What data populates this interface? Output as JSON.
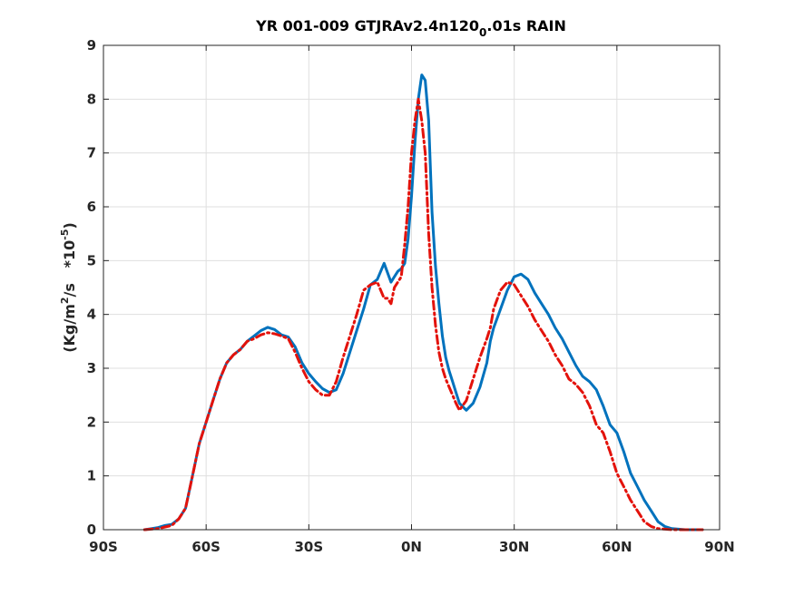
{
  "chart_data": {
    "type": "line",
    "title": {
      "main": "YR 001-009 GTJRAv2.4n120",
      "subscript": "0",
      "rest": ".01s RAIN"
    },
    "ylabel": {
      "part1": "(Kg/m",
      "sup1": "2",
      "part2": "/s   *10",
      "sup2": "-5",
      "part3": ")"
    },
    "xlabel": "",
    "xlim": [
      -90,
      90
    ],
    "ylim": [
      0,
      9
    ],
    "grid": true,
    "x_ticks": [
      {
        "value": -90,
        "label": "90S"
      },
      {
        "value": -60,
        "label": "60S"
      },
      {
        "value": -30,
        "label": "30S"
      },
      {
        "value": 0,
        "label": "0N"
      },
      {
        "value": 30,
        "label": "30N"
      },
      {
        "value": 60,
        "label": "60N"
      },
      {
        "value": 90,
        "label": "90N"
      }
    ],
    "y_ticks": [
      0,
      1,
      2,
      3,
      4,
      5,
      6,
      7,
      8,
      9
    ],
    "series": [
      {
        "color": "#0072bd",
        "style": "solid",
        "x": [
          -78,
          -76,
          -74,
          -72,
          -70,
          -68,
          -66,
          -64,
          -62,
          -60,
          -58,
          -56,
          -54,
          -52,
          -50,
          -48,
          -46,
          -44,
          -42,
          -40,
          -38,
          -36,
          -34,
          -32,
          -30,
          -28,
          -26,
          -24,
          -22,
          -20,
          -18,
          -16,
          -14,
          -12,
          -10,
          -8,
          -6,
          -5,
          -4,
          -3,
          -2,
          -1,
          0,
          1,
          2,
          3,
          4,
          5,
          6,
          7,
          8,
          9,
          10,
          11,
          12,
          13,
          14,
          16,
          18,
          20,
          22,
          23,
          24,
          26,
          28,
          30,
          32,
          34,
          36,
          38,
          40,
          42,
          44,
          46,
          48,
          50,
          52,
          54,
          56,
          58,
          60,
          62,
          64,
          66,
          68,
          70,
          72,
          74,
          76,
          78,
          80,
          82,
          84,
          85
        ],
        "y": [
          0.0,
          0.02,
          0.04,
          0.08,
          0.1,
          0.2,
          0.4,
          1.0,
          1.6,
          2.0,
          2.4,
          2.8,
          3.1,
          3.25,
          3.35,
          3.5,
          3.6,
          3.7,
          3.76,
          3.72,
          3.62,
          3.58,
          3.4,
          3.1,
          2.9,
          2.75,
          2.62,
          2.55,
          2.6,
          2.9,
          3.3,
          3.7,
          4.1,
          4.55,
          4.65,
          4.95,
          4.6,
          4.7,
          4.8,
          4.85,
          4.95,
          5.4,
          6.2,
          7.2,
          8.0,
          8.45,
          8.35,
          7.6,
          5.9,
          4.9,
          4.2,
          3.6,
          3.2,
          2.95,
          2.75,
          2.55,
          2.35,
          2.22,
          2.35,
          2.65,
          3.1,
          3.5,
          3.75,
          4.1,
          4.45,
          4.7,
          4.75,
          4.65,
          4.4,
          4.2,
          4.0,
          3.75,
          3.55,
          3.3,
          3.05,
          2.85,
          2.75,
          2.6,
          2.3,
          1.95,
          1.8,
          1.45,
          1.05,
          0.8,
          0.55,
          0.35,
          0.15,
          0.06,
          0.02,
          0.01,
          0.0,
          0.0,
          0.0,
          0.0
        ]
      },
      {
        "color": "#e3120b",
        "style": "dashed",
        "x": [
          -78,
          -76,
          -74,
          -72,
          -70,
          -68,
          -66,
          -64,
          -62,
          -60,
          -58,
          -56,
          -54,
          -52,
          -50,
          -48,
          -46,
          -44,
          -42,
          -40,
          -38,
          -36,
          -34,
          -32,
          -30,
          -28,
          -26,
          -24,
          -22,
          -20,
          -18,
          -16,
          -14,
          -12,
          -10,
          -8,
          -7,
          -6,
          -5,
          -4,
          -3,
          -2,
          -1,
          0,
          1,
          2,
          3,
          4,
          5,
          6,
          7,
          8,
          9,
          10,
          11,
          12,
          13,
          14,
          16,
          18,
          20,
          22,
          23,
          24,
          26,
          28,
          30,
          32,
          34,
          36,
          38,
          40,
          42,
          44,
          46,
          48,
          50,
          52,
          54,
          56,
          58,
          60,
          62,
          64,
          66,
          68,
          70,
          72,
          74,
          76,
          78,
          80,
          82,
          84,
          85
        ],
        "y": [
          0.0,
          0.01,
          0.02,
          0.05,
          0.08,
          0.2,
          0.4,
          1.0,
          1.6,
          2.0,
          2.4,
          2.8,
          3.1,
          3.25,
          3.35,
          3.5,
          3.55,
          3.62,
          3.66,
          3.64,
          3.6,
          3.55,
          3.3,
          3.0,
          2.75,
          2.6,
          2.5,
          2.5,
          2.75,
          3.2,
          3.6,
          4.0,
          4.45,
          4.55,
          4.6,
          4.3,
          4.3,
          4.2,
          4.5,
          4.6,
          4.7,
          5.3,
          6.0,
          7.0,
          7.6,
          8.0,
          7.6,
          7.0,
          5.5,
          4.5,
          3.8,
          3.3,
          3.0,
          2.8,
          2.65,
          2.5,
          2.35,
          2.22,
          2.4,
          2.8,
          3.2,
          3.55,
          3.75,
          4.1,
          4.45,
          4.6,
          4.55,
          4.35,
          4.15,
          3.9,
          3.7,
          3.5,
          3.25,
          3.05,
          2.8,
          2.7,
          2.55,
          2.3,
          1.95,
          1.8,
          1.45,
          1.05,
          0.8,
          0.55,
          0.35,
          0.15,
          0.06,
          0.02,
          0.01,
          0.0,
          0.0,
          0.0,
          0.0,
          0.0,
          0.0
        ]
      }
    ]
  }
}
